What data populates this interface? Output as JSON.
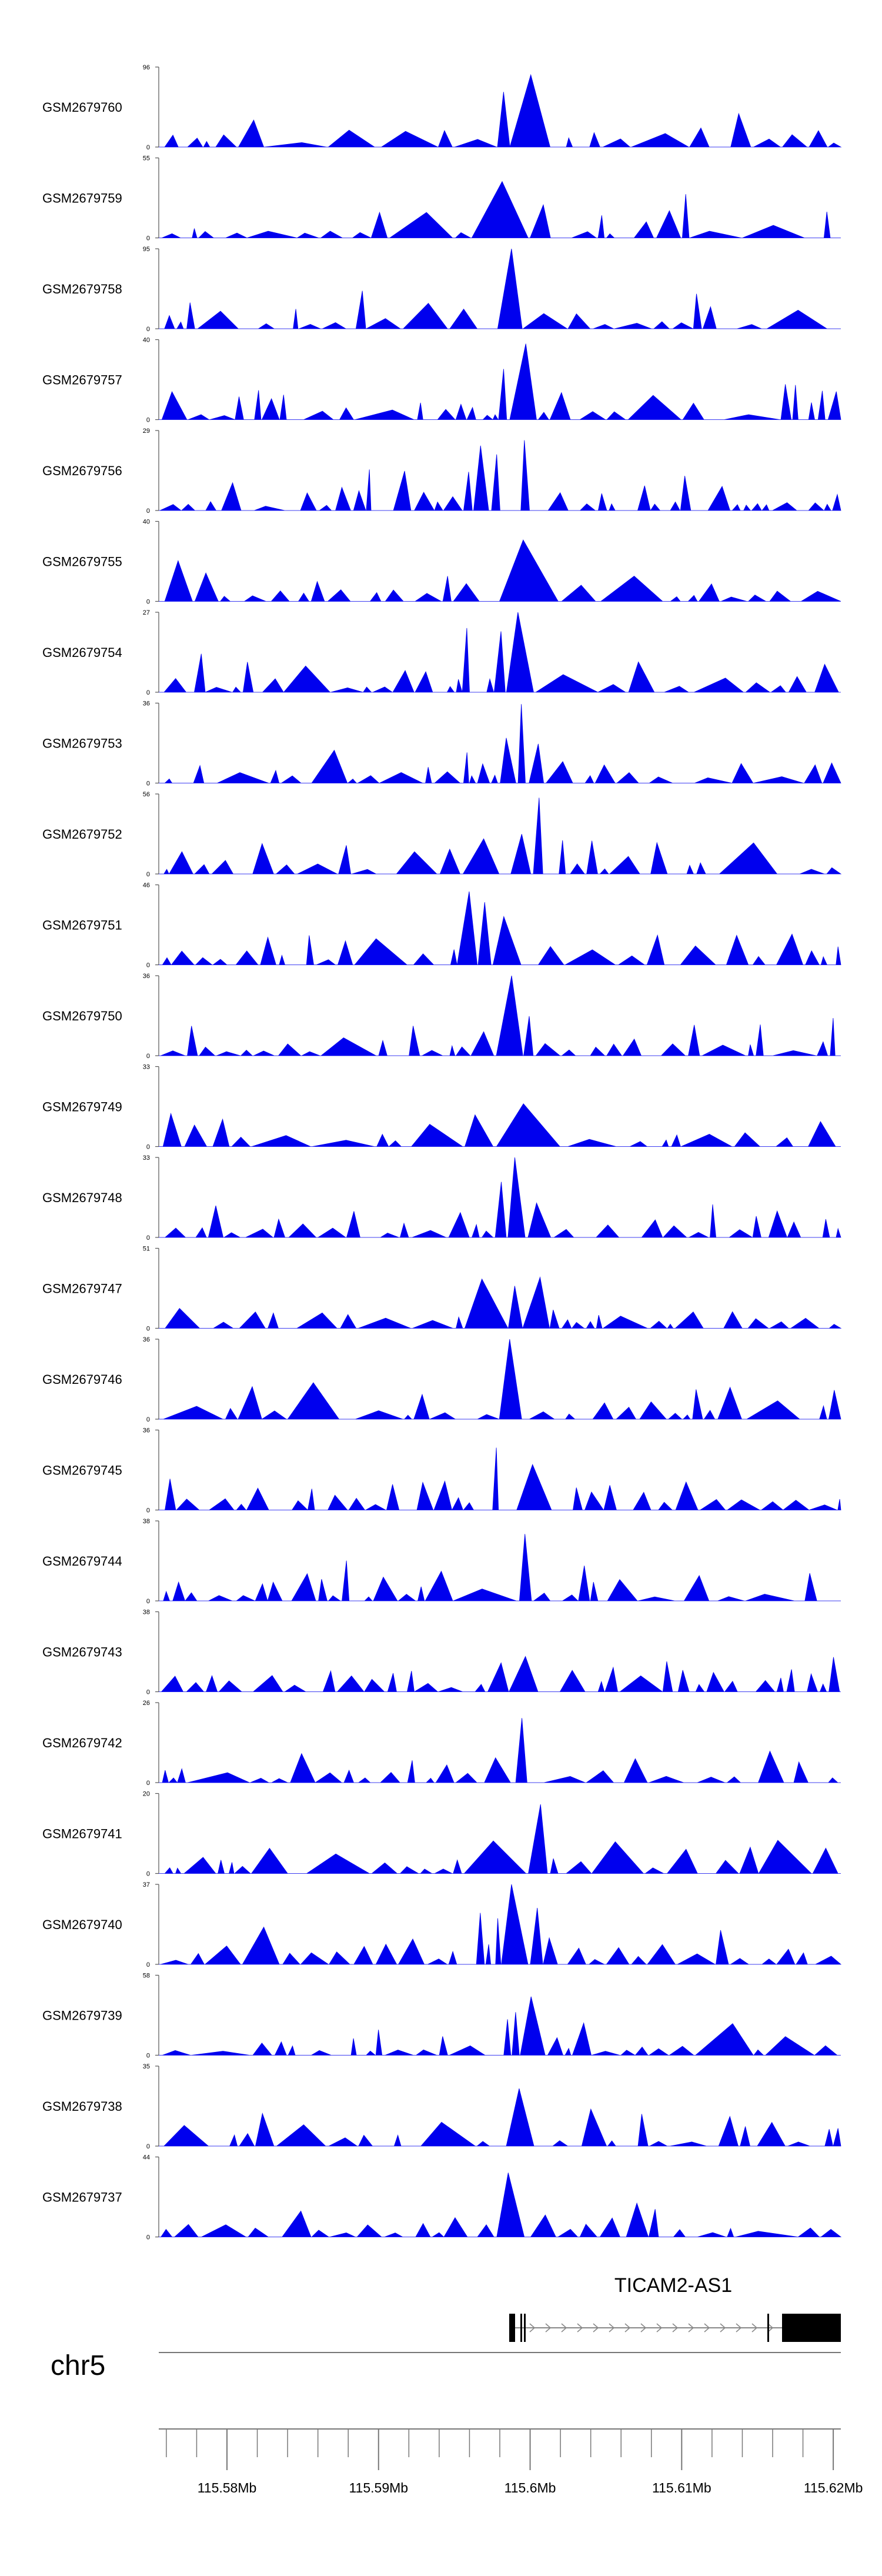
{
  "chart_data": {
    "type": "area",
    "title": "",
    "chromosome": "chr5",
    "xlim": [
      115.5755,
      115.6205
    ],
    "xunit": "Mb",
    "x_ticks": [
      115.58,
      115.59,
      115.6,
      115.61,
      115.62
    ],
    "x_tick_labels": [
      "115.58Mb",
      "115.59Mb",
      "115.6Mb",
      "115.61Mb",
      "115.62Mb"
    ],
    "tracks": [
      {
        "name": "GSM2679760",
        "ymax": 96,
        "ymin": 0
      },
      {
        "name": "GSM2679759",
        "ymax": 55,
        "ymin": 0
      },
      {
        "name": "GSM2679758",
        "ymax": 95,
        "ymin": 0
      },
      {
        "name": "GSM2679757",
        "ymax": 40,
        "ymin": 0
      },
      {
        "name": "GSM2679756",
        "ymax": 29,
        "ymin": 0
      },
      {
        "name": "GSM2679755",
        "ymax": 40,
        "ymin": 0
      },
      {
        "name": "GSM2679754",
        "ymax": 27,
        "ymin": 0
      },
      {
        "name": "GSM2679753",
        "ymax": 36,
        "ymin": 0
      },
      {
        "name": "GSM2679752",
        "ymax": 56,
        "ymin": 0
      },
      {
        "name": "GSM2679751",
        "ymax": 46,
        "ymin": 0
      },
      {
        "name": "GSM2679750",
        "ymax": 36,
        "ymin": 0
      },
      {
        "name": "GSM2679749",
        "ymax": 33,
        "ymin": 0
      },
      {
        "name": "GSM2679748",
        "ymax": 33,
        "ymin": 0
      },
      {
        "name": "GSM2679747",
        "ymax": 51,
        "ymin": 0
      },
      {
        "name": "GSM2679746",
        "ymax": 36,
        "ymin": 0
      },
      {
        "name": "GSM2679745",
        "ymax": 36,
        "ymin": 0
      },
      {
        "name": "GSM2679744",
        "ymax": 38,
        "ymin": 0
      },
      {
        "name": "GSM2679743",
        "ymax": 38,
        "ymin": 0
      },
      {
        "name": "GSM2679742",
        "ymax": 26,
        "ymin": 0
      },
      {
        "name": "GSM2679741",
        "ymax": 20,
        "ymin": 0
      },
      {
        "name": "GSM2679740",
        "ymax": 37,
        "ymin": 0
      },
      {
        "name": "GSM2679739",
        "ymax": 58,
        "ymin": 0
      },
      {
        "name": "GSM2679738",
        "ymax": 35,
        "ymin": 0
      },
      {
        "name": "GSM2679737",
        "ymax": 44,
        "ymin": 0
      }
    ],
    "gene": {
      "name": "TICAM2-AS1",
      "strand": "+"
    },
    "fill_color": "#0000ee"
  }
}
